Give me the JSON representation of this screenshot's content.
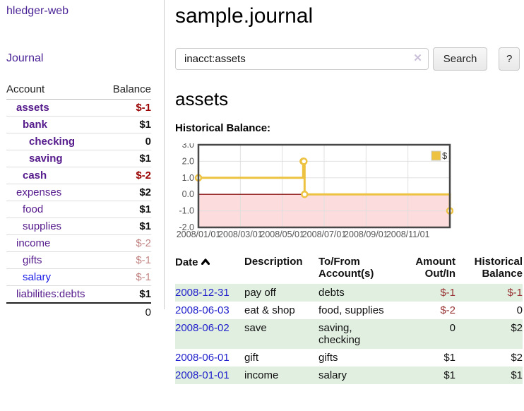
{
  "app": {
    "title": "hledger-web"
  },
  "sidebar": {
    "journal_label": "Journal",
    "headers": {
      "account": "Account",
      "balance": "Balance"
    },
    "accounts": [
      {
        "name": "assets",
        "balance": "$-1"
      },
      {
        "name": "bank",
        "balance": "$1"
      },
      {
        "name": "checking",
        "balance": "0"
      },
      {
        "name": "saving",
        "balance": "$1"
      },
      {
        "name": "cash",
        "balance": "$-2"
      },
      {
        "name": "expenses",
        "balance": "$2"
      },
      {
        "name": "food",
        "balance": "$1"
      },
      {
        "name": "supplies",
        "balance": "$1"
      },
      {
        "name": "income",
        "balance": "$-2"
      },
      {
        "name": "gifts",
        "balance": "$-1"
      },
      {
        "name": "salary",
        "balance": "$-1"
      },
      {
        "name": "liabilities:debts",
        "balance": "$1"
      }
    ],
    "total": "0"
  },
  "header": {
    "title": "sample.journal"
  },
  "search": {
    "value": "inacct:assets",
    "clear_label": "✕",
    "button_label": "Search",
    "help_label": "?"
  },
  "account_page": {
    "heading": "assets",
    "section_label": "Historical Balance:"
  },
  "chart_data": {
    "type": "line",
    "step": true,
    "title": "Historical Balance of assets",
    "series": [
      {
        "name": "$",
        "color": "#edc240",
        "points": [
          [
            "2008-01-01",
            1
          ],
          [
            "2008-06-01",
            2
          ],
          [
            "2008-06-02",
            2
          ],
          [
            "2008-06-03",
            0
          ],
          [
            "2008-12-31",
            -1
          ]
        ]
      }
    ],
    "x_ticks": [
      "2008/01/01",
      "2008/03/01",
      "2008/05/01",
      "2008/07/01",
      "2008/09/01",
      "2008/11/01"
    ],
    "y_ticks": [
      3.0,
      2.0,
      1.0,
      0.0,
      -1.0,
      -2.0
    ],
    "ylim": [
      -2,
      3
    ],
    "x_range": [
      "2008-01-01",
      "2008-12-31"
    ],
    "legend": {
      "label": "$",
      "position": "top-right"
    },
    "grid": true,
    "colors": {
      "line": "#edc240",
      "negative_region": "#fcdcdc",
      "zero_line": "#8b1414",
      "grid": "#e0e0e0",
      "border": "#474747",
      "tick_text": "#545454"
    }
  },
  "register": {
    "headers": {
      "date": "Date",
      "description": "Description",
      "accounts": "To/From Account(s)",
      "amount": "Amount Out/In",
      "balance": "Historical Balance"
    },
    "rows": [
      {
        "date": "2008-12-31",
        "description": "pay off",
        "accounts": "debts",
        "amount": "$-1",
        "balance": "$-1"
      },
      {
        "date": "2008-06-03",
        "description": "eat & shop",
        "accounts": "food, supplies",
        "amount": "$-2",
        "balance": "0"
      },
      {
        "date": "2008-06-02",
        "description": "save",
        "accounts": "saving, checking",
        "amount": "0",
        "balance": "$2"
      },
      {
        "date": "2008-06-01",
        "description": "gift",
        "accounts": "gifts",
        "amount": "$1",
        "balance": "$2"
      },
      {
        "date": "2008-01-01",
        "description": "income",
        "accounts": "salary",
        "amount": "$1",
        "balance": "$1"
      }
    ]
  },
  "colors": {
    "link_purple": "#551a8b",
    "link_blue": "#1a1ae6",
    "date_link": "#2222cc",
    "negative_strong": "#990000",
    "negative_muted": "#c28383",
    "table_negative": "#993333",
    "row_highlight": "#e1efe1"
  }
}
